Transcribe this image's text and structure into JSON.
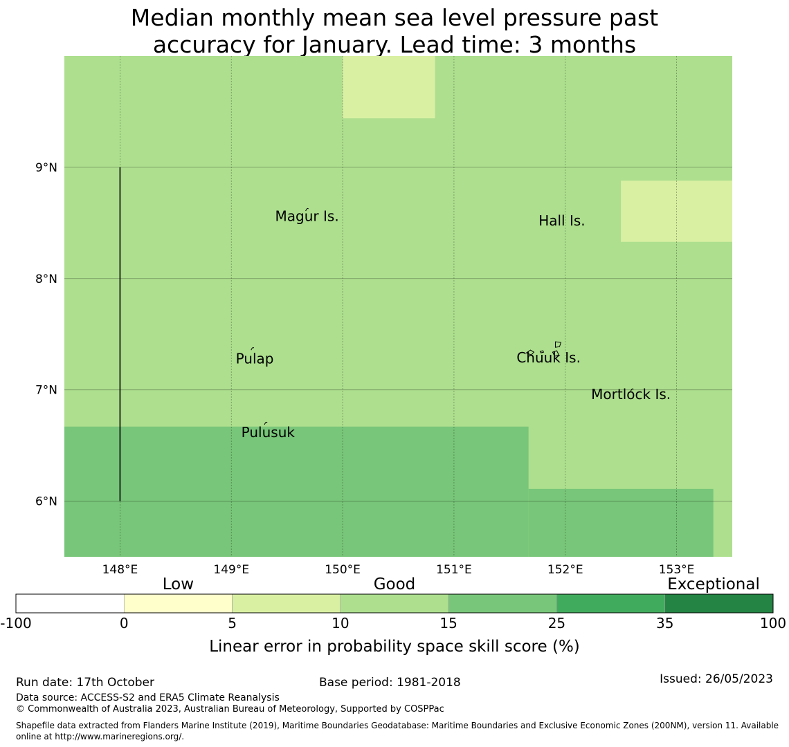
{
  "title": {
    "line1": "Median monthly mean sea level pressure past",
    "line2": "accuracy for January. Lead time: 3 months"
  },
  "map": {
    "lon_range": [
      147.5,
      153.5
    ],
    "lat_range": [
      5.5,
      10.0
    ],
    "lon_ticks": [
      148,
      149,
      150,
      151,
      152,
      153
    ],
    "lon_tick_labels": [
      "148°E",
      "149°E",
      "150°E",
      "151°E",
      "152°E",
      "153°E"
    ],
    "lat_ticks": [
      6,
      7,
      8,
      9
    ],
    "lat_tick_labels": [
      "6°N",
      "7°N",
      "8°N",
      "9°N"
    ],
    "background_fill": "#addf8e",
    "regions": [
      {
        "lon": [
          150.0,
          150.83
        ],
        "lat": [
          9.44,
          10.0
        ],
        "fill": "#d9f0a3",
        "category": "5-10"
      },
      {
        "lon": [
          152.5,
          153.5
        ],
        "lat": [
          8.33,
          8.88
        ],
        "fill": "#d9f0a3",
        "category": "5-10"
      },
      {
        "lon": [
          147.5,
          151.67
        ],
        "lat": [
          5.5,
          6.67
        ],
        "fill": "#78c679",
        "category": "15-25"
      },
      {
        "lon": [
          151.67,
          153.33
        ],
        "lat": [
          5.5,
          6.11
        ],
        "fill": "#78c679",
        "category": "15-25"
      }
    ],
    "boundary_line": {
      "lon": 148.0,
      "lat": [
        6.0,
        9.0
      ]
    },
    "places": [
      {
        "name": "Magur Is.",
        "lon": 149.68,
        "lat": 8.56
      },
      {
        "name": "Hall Is.",
        "lon": 151.97,
        "lat": 8.52
      },
      {
        "name": "Pulap",
        "lon": 149.21,
        "lat": 7.28
      },
      {
        "name": "Chuuk Is.",
        "lon": 151.85,
        "lat": 7.29
      },
      {
        "name": "Mortlock Is.",
        "lon": 152.59,
        "lat": 6.96
      },
      {
        "name": "Pulusuk",
        "lon": 149.33,
        "lat": 6.62
      }
    ]
  },
  "colorbar": {
    "boundaries": [
      "-100",
      "0",
      "5",
      "10",
      "15",
      "25",
      "35",
      "100"
    ],
    "colors": [
      "#ffffff",
      "#ffffcc",
      "#d9f0a3",
      "#addf8e",
      "#78c679",
      "#41ab5d",
      "#238443"
    ],
    "categories": [
      {
        "label": "Low",
        "at_index": 1.5
      },
      {
        "label": "Good",
        "at_index": 3.5
      },
      {
        "label": "Exceptional",
        "at_index": 6.45
      }
    ],
    "label": "Linear error in probability space skill score (%)"
  },
  "footer": {
    "run_date": "Run date: 17th October",
    "base_period": "Base period: 1981-2018",
    "issued": "Issued: 26/05/2023",
    "data_source": "Data source: ACCESS-S2 and ERA5 Climate Reanalysis",
    "copyright": "© Commonwealth of Australia 2023, Australian Bureau of Meteorology, Supported by COSPPac",
    "shapefile_line1": "Shapefile data extracted from Flanders Marine Institute (2019), Maritime Boundaries Geodatabase: Maritime Boundaries and Exclusive Economic Zones (200NM), version 11. Available",
    "shapefile_line2": "online at http://www.marineregions.org/."
  }
}
